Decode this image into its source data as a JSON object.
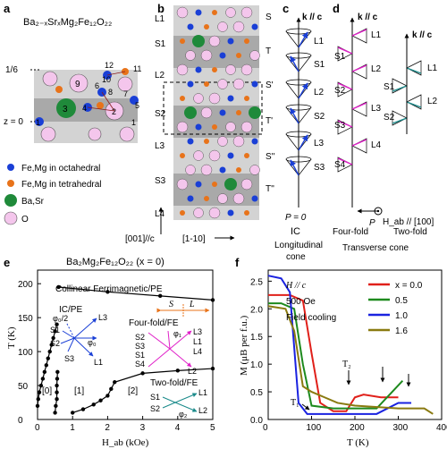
{
  "panels": {
    "a": {
      "label": "a",
      "formula": "Ba₂₋ₓSrₓMg₂Fe₁₂O₂₂",
      "z_top": "1/6",
      "z_zero": "z = 0",
      "site_numbers": [
        "1",
        "2",
        "3",
        "4",
        "5",
        "6",
        "7",
        "8",
        "9",
        "10",
        "11",
        "12",
        "1"
      ],
      "legend": [
        {
          "text": "Fe,Mg in octahedral",
          "color": "#1a3fd6"
        },
        {
          "text": "Fe,Mg in tetrahedral",
          "color": "#e8731a"
        },
        {
          "text": "Ba,Sr",
          "color": "#1f8a3a"
        },
        {
          "text": "O",
          "color": "#f4c6ec"
        }
      ]
    },
    "b": {
      "label": "b",
      "left_labels": [
        "L1",
        "S1",
        "L2",
        "S2",
        "L3",
        "S3",
        "L4"
      ],
      "right_labels": [
        "S",
        "T",
        "S'",
        "T'",
        "S''",
        "T''"
      ],
      "axis_label_1": "[001]//c",
      "axis_label_2": "[1-10]"
    },
    "c": {
      "label": "c",
      "kvec": "k // c",
      "labels": [
        "L1",
        "S1",
        "L2",
        "S2",
        "L3",
        "S3"
      ],
      "p_label": "P = 0",
      "phase": "IC",
      "caption1": "Longitudinal",
      "caption2": "cone"
    },
    "d": {
      "label": "d",
      "kvec": "k // c",
      "fourfold_labels_left": [
        "S1",
        "S2",
        "S3",
        "S4"
      ],
      "fourfold_labels_right": [
        "L1",
        "L2",
        "L3",
        "L4"
      ],
      "twofold_labels_left": [
        "S1",
        "S2"
      ],
      "twofold_labels_right": [
        "L1",
        "L2"
      ],
      "p_label": "P",
      "field_label": "H_ab // [100]",
      "phase1": "Four-fold",
      "phase2": "Two-fold",
      "caption": "Transverse cone"
    },
    "e": {
      "label": "e",
      "title": "Ba₂Mg₂Fe₁₂O₂₂ (x = 0)",
      "top_phase": "Collinear Ferrimagnetic/PE",
      "s_label": "S",
      "l_label": "L",
      "ic_phase": "IC/PE",
      "four_phase": "Four-fold/FE",
      "two_phase": "Two-fold/FE",
      "region0": "[0]",
      "region1": "[1]",
      "region2": "[2]",
      "phi_half": "φ₀/2",
      "phi0": "φ₀",
      "phi1": "φ₁",
      "phi2": "φ₂",
      "ic_spins": [
        "L3",
        "S1",
        "S2",
        "S3",
        "L1"
      ],
      "ff_spins_left": [
        "S2",
        "S3",
        "S1",
        "S4"
      ],
      "ff_spins_right": [
        "L3",
        "L1",
        "L4",
        "L2"
      ],
      "tf_spins": [
        "S1",
        "S2",
        "L1",
        "L2"
      ],
      "xlabel": "H_ab (kOe)",
      "ylabel": "T (K)",
      "x_ticks": [
        "0",
        "1",
        "2",
        "3",
        "4",
        "5"
      ],
      "y_ticks": [
        "0",
        "50",
        "100",
        "150",
        "200"
      ]
    },
    "f": {
      "label": "f",
      "xlabel": "T (K)",
      "ylabel": "M (μB per f.u.)",
      "x_ticks": [
        "0",
        "100",
        "200",
        "300",
        "400"
      ],
      "y_ticks": [
        "0.0",
        "0.5",
        "1.0",
        "1.5",
        "2.0",
        "2.5"
      ],
      "annot_h": "H // c",
      "annot_field": "500 Oe",
      "annot_fc": "Field cooling",
      "t1": "T₁",
      "t2": "T₂"
    }
  },
  "chart_data": [
    {
      "type": "line",
      "panel": "e",
      "title": "Ba₂Mg₂Fe₁₂O₂₂ (x = 0)",
      "xlabel": "H_ab (kOe)",
      "ylabel": "T (K)",
      "xlim": [
        0,
        5
      ],
      "ylim": [
        0,
        220
      ],
      "series": [
        {
          "x": [
            0.6,
            2.0,
            3.5,
            5.0
          ],
          "y": [
            195,
            188,
            182,
            176
          ]
        },
        {
          "x": [
            0.0,
            0.02,
            0.05,
            0.1,
            0.15,
            0.2,
            0.25,
            0.3,
            0.35,
            0.4,
            0.45,
            0.5,
            0.55
          ],
          "y": [
            20,
            30,
            40,
            50,
            60,
            70,
            80,
            90,
            100,
            110,
            120,
            130,
            140
          ]
        },
        {
          "x": [
            0.5,
            0.52,
            0.55,
            0.55,
            0.55,
            0.56,
            0.57
          ],
          "y": [
            10,
            20,
            30,
            40,
            50,
            60,
            70
          ]
        },
        {
          "x": [
            1.0,
            1.3,
            1.6,
            1.8,
            2.0,
            2.1,
            2.2,
            3.0,
            4.0,
            5.0
          ],
          "y": [
            10,
            15,
            22,
            28,
            35,
            45,
            55,
            68,
            72,
            75
          ]
        }
      ]
    },
    {
      "type": "line",
      "panel": "f",
      "xlabel": "T (K)",
      "ylabel": "M (μB per f.u.)",
      "xlim": [
        0,
        400
      ],
      "ylim": [
        0,
        2.7
      ],
      "series": [
        {
          "name": "x = 0.0",
          "color": "#e0201a",
          "x": [
            0,
            50,
            80,
            100,
            120,
            150,
            180,
            200,
            220,
            260,
            300
          ],
          "y": [
            2.25,
            2.25,
            2.15,
            1.2,
            0.3,
            0.15,
            0.15,
            0.4,
            0.45,
            0.4,
            0.4
          ]
        },
        {
          "name": "0.5",
          "color": "#1e8a1e",
          "x": [
            0,
            30,
            60,
            80,
            100,
            150,
            200,
            250,
            280,
            310
          ],
          "y": [
            2.1,
            2.1,
            2.0,
            1.0,
            0.25,
            0.2,
            0.2,
            0.2,
            0.45,
            0.7
          ]
        },
        {
          "name": "1.0",
          "color": "#1a22e0",
          "x": [
            0,
            30,
            50,
            70,
            90,
            150,
            250,
            300,
            330
          ],
          "y": [
            2.6,
            2.55,
            2.3,
            0.3,
            0.1,
            0.1,
            0.1,
            0.3,
            0.3
          ]
        },
        {
          "name": "1.6",
          "color": "#8a7a10",
          "x": [
            0,
            40,
            60,
            80,
            100,
            130,
            160,
            200,
            300,
            360,
            380
          ],
          "y": [
            2.05,
            2.0,
            1.6,
            0.6,
            0.5,
            0.4,
            0.3,
            0.25,
            0.2,
            0.2,
            0.1
          ]
        }
      ]
    }
  ]
}
